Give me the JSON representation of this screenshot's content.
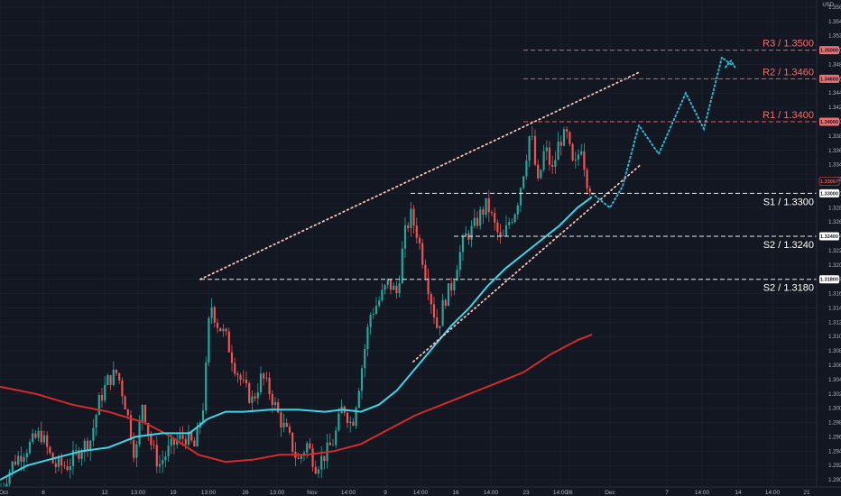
{
  "chart_data": {
    "type": "candlestick",
    "currency": "USD",
    "ylim": [
      1.289,
      1.357
    ],
    "y_ticks": [
      1.29,
      1.292,
      1.294,
      1.296,
      1.298,
      1.3,
      1.302,
      1.304,
      1.306,
      1.308,
      1.31,
      1.312,
      1.314,
      1.316,
      1.318,
      1.32,
      1.322,
      1.324,
      1.326,
      1.328,
      1.33,
      1.332,
      1.334,
      1.336,
      1.338,
      1.34,
      1.342,
      1.344,
      1.346,
      1.348,
      1.35,
      1.352,
      1.354,
      1.356
    ],
    "x_labels": [
      {
        "t": 0,
        "label": "Oct"
      },
      {
        "t": 48,
        "label": "6"
      },
      {
        "t": 116,
        "label": "12"
      },
      {
        "t": 153,
        "label": "13:00"
      },
      {
        "t": 192,
        "label": "19"
      },
      {
        "t": 231,
        "label": "13:00"
      },
      {
        "t": 272,
        "label": "26"
      },
      {
        "t": 307,
        "label": "13:00"
      },
      {
        "t": 346,
        "label": "Nov"
      },
      {
        "t": 386,
        "label": "14:00"
      },
      {
        "t": 427,
        "label": "9"
      },
      {
        "t": 466,
        "label": "14:00"
      },
      {
        "t": 505,
        "label": "16"
      },
      {
        "t": 544,
        "label": "14:00"
      },
      {
        "t": 583,
        "label": "23"
      },
      {
        "t": 621,
        "label": "14:00"
      },
      {
        "t": 631,
        "label": "26"
      },
      {
        "t": 676,
        "label": "Dec"
      },
      {
        "t": 739,
        "label": "7"
      },
      {
        "t": 778,
        "label": "14:00"
      },
      {
        "t": 818,
        "label": "14"
      },
      {
        "t": 856,
        "label": "14:00"
      },
      {
        "t": 894,
        "label": "21"
      }
    ],
    "levels": [
      {
        "label": "R3 / 1.3500",
        "value": 1.35,
        "kind": "resistance",
        "x_start": 580
      },
      {
        "label": "R2 / 1.3460",
        "value": 1.346,
        "kind": "resistance",
        "x_start": 580
      },
      {
        "label": "R1 / 1.3400",
        "value": 1.34,
        "kind": "resistance",
        "x_start": 580
      },
      {
        "label": "S1 / 1.3300",
        "value": 1.33,
        "kind": "support",
        "x_start": 455
      },
      {
        "label": "S2 / 1.3240",
        "value": 1.324,
        "kind": "support",
        "x_start": 503
      },
      {
        "label": "S2 / 1.3180",
        "value": 1.318,
        "kind": "support",
        "x_start": 222
      }
    ],
    "price_tags": [
      {
        "label": "1.35000",
        "value": 1.35,
        "kind": "resistance"
      },
      {
        "label": "1.34600",
        "value": 1.346,
        "kind": "resistance"
      },
      {
        "label": "1.34000",
        "value": 1.34,
        "kind": "resistance"
      },
      {
        "label": "1.33057",
        "value": 1.33057,
        "kind": "current"
      },
      {
        "label": "1.33000",
        "value": 1.33,
        "kind": "support"
      },
      {
        "label": "1.32400",
        "value": 1.324,
        "kind": "support"
      },
      {
        "label": "1.31800",
        "value": 1.318,
        "kind": "support"
      }
    ],
    "candle_anchors": [
      [
        0,
        1.2885
      ],
      [
        15,
        1.2925
      ],
      [
        30,
        1.2945
      ],
      [
        45,
        1.2965
      ],
      [
        60,
        1.292
      ],
      [
        75,
        1.292
      ],
      [
        90,
        1.2945
      ],
      [
        100,
        1.2955
      ],
      [
        110,
        1.301
      ],
      [
        120,
        1.304
      ],
      [
        130,
        1.305
      ],
      [
        140,
        1.3
      ],
      [
        150,
        1.293
      ],
      [
        158,
        1.301
      ],
      [
        166,
        1.2955
      ],
      [
        176,
        1.292
      ],
      [
        186,
        1.294
      ],
      [
        196,
        1.2955
      ],
      [
        206,
        1.296
      ],
      [
        216,
        1.2945
      ],
      [
        226,
        1.301
      ],
      [
        233,
        1.315
      ],
      [
        240,
        1.312
      ],
      [
        250,
        1.31
      ],
      [
        260,
        1.306
      ],
      [
        270,
        1.303
      ],
      [
        280,
        1.301
      ],
      [
        290,
        1.3045
      ],
      [
        300,
        1.302
      ],
      [
        310,
        1.2985
      ],
      [
        320,
        1.296
      ],
      [
        330,
        1.2925
      ],
      [
        340,
        1.295
      ],
      [
        350,
        1.292
      ],
      [
        360,
        1.2935
      ],
      [
        370,
        1.2955
      ],
      [
        380,
        1.3005
      ],
      [
        390,
        1.2975
      ],
      [
        400,
        1.305
      ],
      [
        410,
        1.313
      ],
      [
        420,
        1.315
      ],
      [
        430,
        1.3175
      ],
      [
        440,
        1.316
      ],
      [
        448,
        1.324
      ],
      [
        455,
        1.327
      ],
      [
        462,
        1.3245
      ],
      [
        470,
        1.32
      ],
      [
        478,
        1.315
      ],
      [
        485,
        1.311
      ],
      [
        492,
        1.315
      ],
      [
        500,
        1.317
      ],
      [
        508,
        1.321
      ],
      [
        516,
        1.324
      ],
      [
        524,
        1.325
      ],
      [
        532,
        1.327
      ],
      [
        540,
        1.3285
      ],
      [
        548,
        1.3255
      ],
      [
        556,
        1.323
      ],
      [
        564,
        1.326
      ],
      [
        572,
        1.328
      ],
      [
        580,
        1.333
      ],
      [
        588,
        1.339
      ],
      [
        596,
        1.331
      ],
      [
        604,
        1.3365
      ],
      [
        612,
        1.333
      ],
      [
        620,
        1.3375
      ],
      [
        628,
        1.338
      ],
      [
        636,
        1.333
      ],
      [
        644,
        1.337
      ],
      [
        650,
        1.332
      ],
      [
        656,
        1.3306
      ]
    ],
    "ma_fast": [
      [
        0,
        1.29
      ],
      [
        30,
        1.292
      ],
      [
        60,
        1.293
      ],
      [
        90,
        1.294
      ],
      [
        120,
        1.2945
      ],
      [
        150,
        1.296
      ],
      [
        180,
        1.2965
      ],
      [
        210,
        1.2965
      ],
      [
        230,
        1.2985
      ],
      [
        250,
        1.2995
      ],
      [
        270,
        1.2995
      ],
      [
        300,
        1.2998
      ],
      [
        330,
        1.2998
      ],
      [
        360,
        1.2995
      ],
      [
        380,
        1.2998
      ],
      [
        400,
        1.2995
      ],
      [
        420,
        1.3005
      ],
      [
        440,
        1.3025
      ],
      [
        460,
        1.3055
      ],
      [
        480,
        1.3085
      ],
      [
        500,
        1.3115
      ],
      [
        520,
        1.314
      ],
      [
        540,
        1.317
      ],
      [
        560,
        1.3195
      ],
      [
        580,
        1.3215
      ],
      [
        600,
        1.3235
      ],
      [
        620,
        1.3255
      ],
      [
        640,
        1.328
      ],
      [
        656,
        1.3295
      ]
    ],
    "ma_slow": [
      [
        0,
        1.303
      ],
      [
        40,
        1.302
      ],
      [
        80,
        1.3005
      ],
      [
        120,
        1.2995
      ],
      [
        160,
        1.298
      ],
      [
        190,
        1.296
      ],
      [
        220,
        1.2935
      ],
      [
        250,
        1.2925
      ],
      [
        280,
        1.2928
      ],
      [
        310,
        1.2935
      ],
      [
        340,
        1.2935
      ],
      [
        370,
        1.294
      ],
      [
        400,
        1.295
      ],
      [
        430,
        1.297
      ],
      [
        460,
        1.299
      ],
      [
        490,
        1.3005
      ],
      [
        520,
        1.302
      ],
      [
        550,
        1.3035
      ],
      [
        580,
        1.305
      ],
      [
        610,
        1.3075
      ],
      [
        640,
        1.3095
      ],
      [
        656,
        1.3103
      ]
    ],
    "channel_upper": [
      [
        222,
        1.318
      ],
      [
        710,
        1.347
      ]
    ],
    "channel_lower": [
      [
        458,
        1.3065
      ],
      [
        710,
        1.334
      ]
    ],
    "projection": [
      [
        656,
        1.33
      ],
      [
        666,
        1.329
      ],
      [
        676,
        1.328
      ],
      [
        690,
        1.331
      ],
      [
        708,
        1.3395
      ],
      [
        730,
        1.3355
      ],
      [
        760,
        1.344
      ],
      [
        780,
        1.339
      ],
      [
        800,
        1.349
      ],
      [
        810,
        1.348
      ]
    ],
    "colors": {
      "background": "#131722",
      "grid": "#1e222d",
      "bull": "#26a69a",
      "bear": "#ef5350",
      "ma_fast": "#3dd6e8",
      "ma_slow": "#d42a2a",
      "channel": "#f5c2b8",
      "projection": "#29b6cc",
      "support": "#ffffff",
      "resistance": "#f26d6d"
    }
  }
}
